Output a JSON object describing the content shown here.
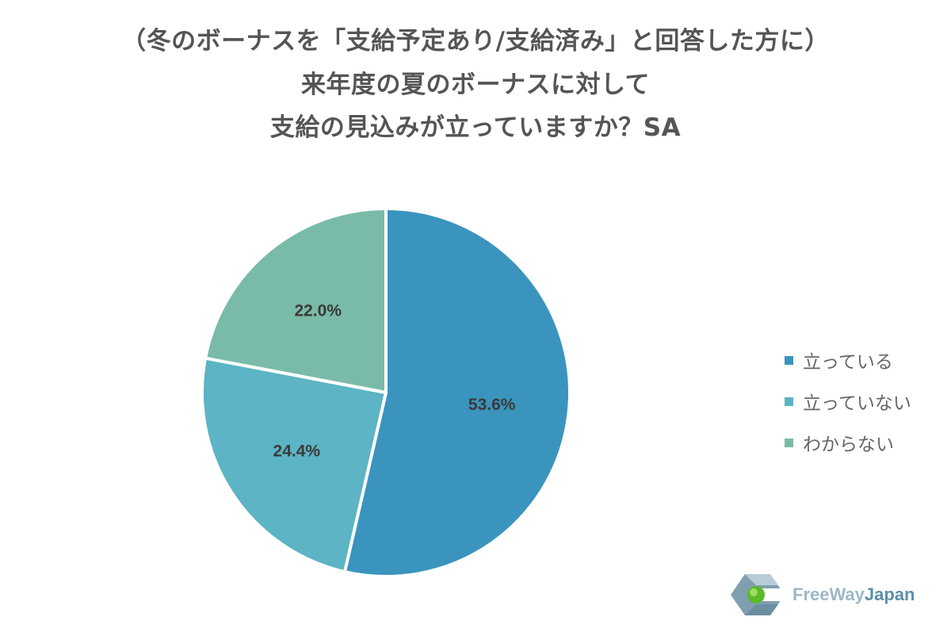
{
  "title": {
    "line1": "（冬のボーナスを「支給予定あり/支給済み」と回答した方に）",
    "line2": "来年度の夏のボーナスに対して",
    "line3": "支給の見込みが立っていますか？SA"
  },
  "chart_data": {
    "type": "pie",
    "title": "（冬のボーナスを「支給予定あり/支給済み」と回答した方に）来年度の夏のボーナスに対して支給の見込みが立っていますか？SA",
    "categories": [
      "立っている",
      "立っていない",
      "わからない"
    ],
    "values": [
      53.6,
      24.4,
      22.0
    ],
    "labels": [
      "53.6%",
      "24.4%",
      "22.0%"
    ],
    "colors": [
      "#3a94be",
      "#5cb4c4",
      "#79bba8"
    ],
    "start_angle": "top, clockwise",
    "legend_position": "right"
  },
  "legend": {
    "items": [
      {
        "label": "立っている",
        "color": "#3a94be"
      },
      {
        "label": "立っていない",
        "color": "#5cb4c4"
      },
      {
        "label": "わからない",
        "color": "#79bba8"
      }
    ]
  },
  "logo": {
    "part1": "FreeWay",
    "part2": "Japan",
    "icon": "freeway-hexagon-logo-icon"
  }
}
